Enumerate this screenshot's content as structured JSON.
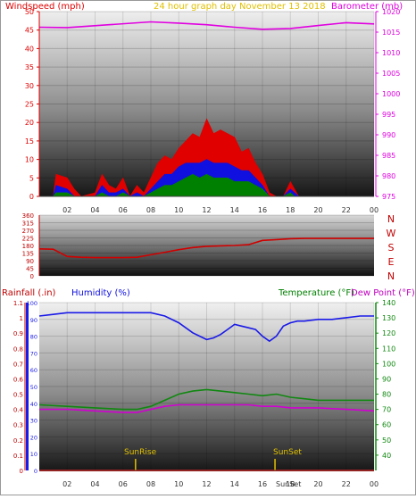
{
  "header": {
    "windspeed_label": "Windspeed (mph)",
    "title": "24 hour graph day   November 13 2018",
    "barometer_label": "Barometer (mb)"
  },
  "middle": {
    "compass": [
      "N",
      "W",
      "S",
      "E",
      "N"
    ]
  },
  "bottom": {
    "rainfall_label": "Rainfall (.in)",
    "humidity_label": "Humidity (%)",
    "temperature_label": "Temperature (°F)",
    "dewpoint_label": "Dew Point (°F)",
    "sunrise_label": "SunRise",
    "sunset_label": "SunSet",
    "sunset_axis_label": "SunSet"
  },
  "colors": {
    "red": "#e00000",
    "magenta": "#e000e0",
    "blue": "#1010e0",
    "green": "#008000",
    "yellow": "#e0c000"
  },
  "chart_data": [
    {
      "type": "area",
      "title": "24 hour graph day   November 13 2018",
      "ylabel": "Windspeed (mph)",
      "y2label": "Barometer (mb)",
      "x_ticks": [
        "02",
        "04",
        "06",
        "08",
        "10",
        "12",
        "14",
        "16",
        "18",
        "20",
        "22",
        "00"
      ],
      "ylim": [
        0,
        50
      ],
      "y_ticks": [
        "0",
        "5",
        "10",
        "15",
        "20",
        "25",
        "30",
        "35",
        "40",
        "45",
        "50"
      ],
      "y2lim": [
        975,
        1020
      ],
      "y2_ticks": [
        "975",
        "980",
        "985",
        "990",
        "995",
        "1000",
        "1005",
        "1010",
        "1015",
        "1020"
      ],
      "x_hours": [
        0,
        1,
        1.2,
        2,
        2.5,
        3,
        4,
        4.5,
        5,
        5.5,
        6,
        6.5,
        7,
        7.5,
        8,
        8.5,
        9,
        9.5,
        10,
        10.5,
        11,
        11.5,
        12,
        12.5,
        13,
        13.5,
        14,
        14.5,
        15,
        15.5,
        16,
        16.5,
        17,
        17.5,
        18,
        18.3,
        18.6,
        19,
        24
      ],
      "series": [
        {
          "name": "gust",
          "values": [
            0,
            0,
            6,
            5,
            2,
            0,
            1,
            6,
            3,
            2,
            5,
            0,
            3,
            1,
            5,
            9,
            11,
            10,
            13,
            15,
            17,
            16,
            21,
            17,
            18,
            17,
            16,
            12,
            13,
            9,
            6,
            1,
            0,
            0,
            4,
            2,
            0,
            0,
            0
          ]
        },
        {
          "name": "average",
          "values": [
            0,
            0,
            3,
            2,
            0,
            0,
            0,
            3,
            1,
            1,
            2,
            0,
            1,
            0,
            2,
            4,
            6,
            6,
            8,
            9,
            9,
            9,
            10,
            9,
            9,
            9,
            8,
            7,
            7,
            5,
            3,
            0,
            0,
            0,
            2,
            1,
            0,
            0,
            0
          ]
        },
        {
          "name": "wind",
          "values": [
            0,
            0,
            1,
            1,
            0,
            0,
            0,
            1,
            0,
            0,
            1,
            0,
            0,
            0,
            1,
            2,
            3,
            3,
            4,
            5,
            6,
            5,
            6,
            5,
            5,
            5,
            4,
            4,
            4,
            3,
            2,
            0,
            0,
            0,
            1,
            0,
            0,
            0,
            0
          ]
        },
        {
          "name": "barometer",
          "x": [
            0,
            2,
            5,
            8,
            10,
            12,
            14,
            16,
            18,
            20,
            22,
            24
          ],
          "values": [
            1016.2,
            1016.1,
            1016.8,
            1017.5,
            1017.2,
            1016.8,
            1016.2,
            1015.7,
            1015.9,
            1016.6,
            1017.3,
            1017.0
          ]
        }
      ]
    },
    {
      "type": "line",
      "ylabel": "",
      "x_ticks": [
        "02",
        "04",
        "06",
        "08",
        "10",
        "12",
        "14",
        "16",
        "18",
        "20",
        "22",
        "00"
      ],
      "ylim": [
        0,
        360
      ],
      "y_ticks": [
        "0",
        "45",
        "90",
        "135",
        "180",
        "225",
        "270",
        "315",
        "360"
      ],
      "series": [
        {
          "name": "direction",
          "x": [
            0,
            1,
            2,
            3,
            4,
            5,
            6,
            7,
            8,
            9,
            10,
            11,
            12,
            13,
            14,
            15,
            16,
            17,
            18,
            19,
            20,
            21,
            22,
            23,
            24
          ],
          "values": [
            160,
            158,
            115,
            110,
            108,
            108,
            108,
            110,
            125,
            140,
            155,
            168,
            175,
            178,
            180,
            185,
            210,
            215,
            220,
            222,
            222,
            222,
            222,
            222,
            222
          ]
        }
      ]
    },
    {
      "type": "line",
      "ylabel": "Rainfall (.in)",
      "y2label": "Humidity (%)",
      "y3label": "Temperature (°F)",
      "y4label": "Dew Point (°F)",
      "x_ticks": [
        "02",
        "04",
        "06",
        "08",
        "10",
        "12",
        "14",
        "16",
        "18",
        "20",
        "22",
        "00"
      ],
      "rain_lim": [
        0,
        1.1
      ],
      "rain_ticks": [
        "0",
        "0.1",
        "0.2",
        "0.3",
        "0.4",
        "0.5",
        "0.6",
        "0.7",
        "0.8",
        "0.9",
        "1",
        "1.1"
      ],
      "humidity_lim": [
        0,
        100
      ],
      "humidity_ticks": [
        "0",
        "10",
        "20",
        "30",
        "40",
        "50",
        "60",
        "70",
        "80",
        "90",
        "100"
      ],
      "temp_lim": [
        30,
        140
      ],
      "temp_ticks": [
        "40",
        "50",
        "60",
        "70",
        "80",
        "90",
        "100",
        "110",
        "120",
        "130",
        "140"
      ],
      "series": [
        {
          "name": "humidity",
          "axis": "humidity",
          "x": [
            0,
            1,
            2,
            4,
            6,
            8,
            9,
            10,
            10.5,
            11,
            11.5,
            12,
            12.5,
            13,
            13.5,
            14,
            14.5,
            15,
            15.5,
            16,
            16.5,
            17,
            17.5,
            18,
            18.5,
            19,
            20,
            21,
            22,
            23,
            24
          ],
          "values": [
            92,
            93,
            94,
            94,
            94,
            94,
            92,
            88,
            85,
            82,
            80,
            78,
            79,
            81,
            84,
            87,
            86,
            85,
            84,
            80,
            77,
            80,
            86,
            88,
            89,
            89,
            90,
            90,
            91,
            92,
            92
          ]
        },
        {
          "name": "temperature",
          "axis": "temp",
          "x": [
            0,
            2,
            4,
            6,
            7,
            8,
            9,
            10,
            11,
            12,
            13,
            14,
            15,
            16,
            17,
            18,
            19,
            20,
            22,
            24
          ],
          "values": [
            73,
            72,
            71,
            70,
            70,
            72,
            76,
            80,
            82,
            83,
            82,
            81,
            80,
            79,
            80,
            78,
            77,
            76,
            76,
            76
          ]
        },
        {
          "name": "dew point",
          "axis": "temp",
          "x": [
            0,
            2,
            4,
            6,
            7,
            8,
            9,
            10,
            11,
            12,
            13,
            14,
            15,
            16,
            17,
            18,
            19,
            20,
            22,
            24
          ],
          "values": [
            70,
            70,
            69,
            68,
            68,
            70,
            72,
            73,
            73,
            73,
            73,
            73,
            73,
            72,
            72,
            71,
            71,
            71,
            70,
            69
          ]
        },
        {
          "name": "rainfall",
          "axis": "rain",
          "x": [
            0,
            24
          ],
          "values": [
            0,
            0
          ]
        }
      ],
      "annotations": [
        {
          "label": "SunRise",
          "x": 6.9
        },
        {
          "label": "SunSet",
          "x": 16.9
        }
      ]
    }
  ]
}
